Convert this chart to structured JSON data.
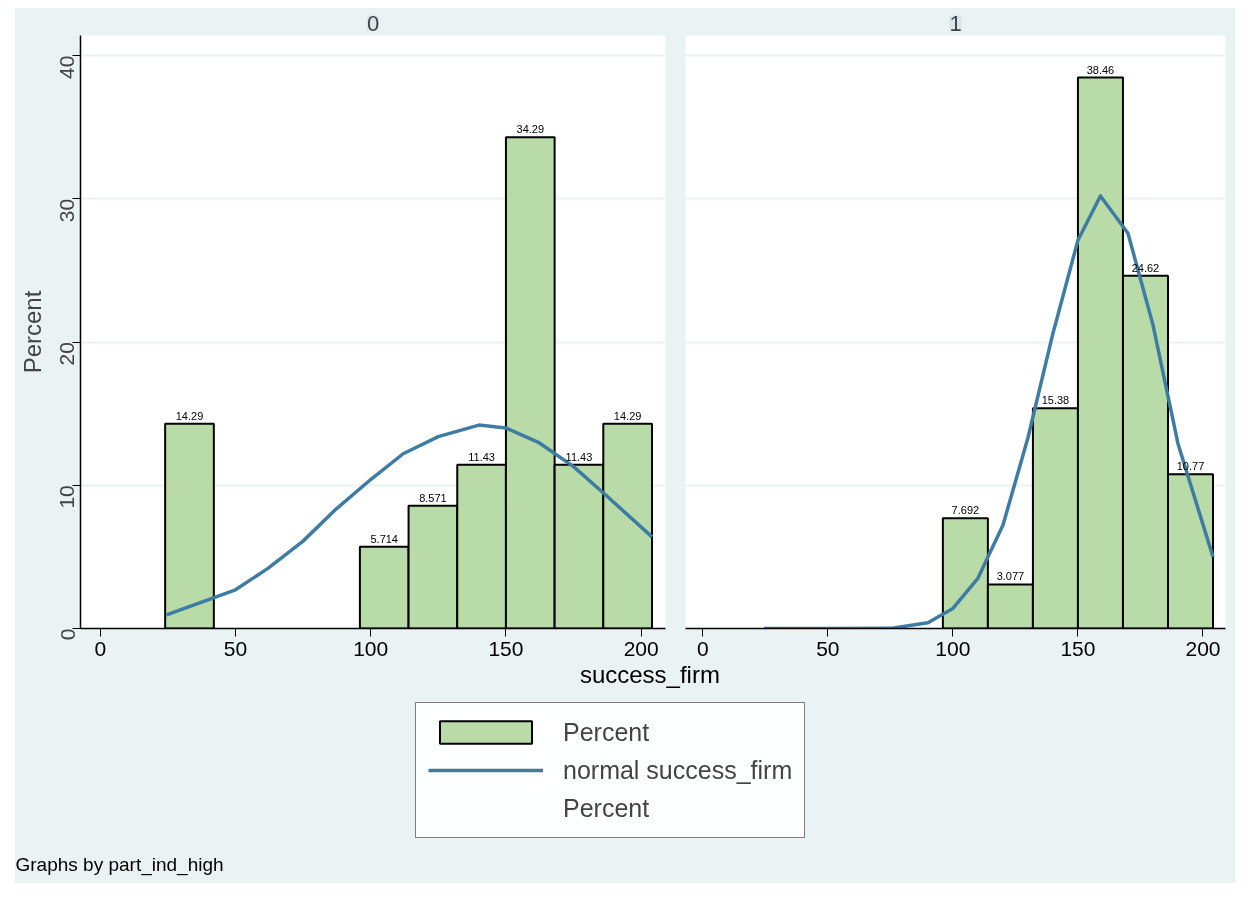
{
  "chart_data": [
    {
      "type": "histogram",
      "title": "0",
      "xlabel": "success_firm",
      "ylabel": "Percent",
      "xlim": [
        -7.3,
        209
      ],
      "ylim": [
        0,
        41.4
      ],
      "xticks": [
        0,
        50,
        100,
        150,
        200
      ],
      "yticks": [
        0,
        10,
        20,
        30,
        40
      ],
      "grid": "y",
      "legend": "bottom",
      "bins": [
        24,
        42,
        60,
        78,
        96,
        114,
        132,
        150,
        168,
        186,
        204
      ],
      "annotations": [
        "Percent",
        "Graphs by part_ind_high"
      ],
      "series": [
        {
          "name": "Percent",
          "color": "#b8dba7",
          "values": [
            14.29,
            0,
            0,
            0,
            5.714,
            8.571,
            11.43,
            34.29,
            11.43,
            14.29
          ],
          "value_labels": [
            "14.29",
            null,
            null,
            null,
            "5.714",
            "8.571",
            "11.43",
            "34.29",
            "11.43",
            "14.29"
          ]
        },
        {
          "type": "line",
          "name": "normal success_firm",
          "color": "#3f7ca4",
          "x": [
            24.5,
            37,
            50,
            62,
            75,
            87,
            100,
            112,
            125,
            140,
            150,
            162,
            175,
            187,
            204
          ],
          "values": [
            0.95,
            1.8,
            2.7,
            4.2,
            6.1,
            8.3,
            10.4,
            12.2,
            13.4,
            14.2,
            14.0,
            13.0,
            11.3,
            9.3,
            6.4
          ]
        }
      ]
    },
    {
      "type": "histogram",
      "title": "1",
      "xlim": [
        -6.9,
        209
      ],
      "ylim": [
        0,
        41.4
      ],
      "xticks": [
        0,
        50,
        100,
        150,
        200
      ],
      "yticks": [
        0,
        10,
        20,
        30,
        40
      ],
      "grid": "y",
      "tick_labels": "x",
      "bins": [
        24,
        42,
        60,
        78,
        96,
        114,
        132,
        150,
        168,
        186,
        204
      ],
      "series": [
        {
          "color": "#b8dba7",
          "values": [
            0,
            0,
            0,
            0,
            7.692,
            3.077,
            15.38,
            38.46,
            24.62,
            10.77
          ],
          "value_labels": [
            null,
            null,
            null,
            null,
            "7.692",
            "3.077",
            "15.38",
            "38.46",
            "24.62",
            "10.77"
          ]
        },
        {
          "type": "line",
          "color": "#3f7ca4",
          "x": [
            24.5,
            50,
            75,
            90,
            100,
            110,
            120,
            130,
            140,
            150,
            159,
            170,
            180,
            190,
            204
          ],
          "values": [
            0,
            0,
            0.01,
            0.4,
            1.4,
            3.5,
            7.2,
            13.3,
            20.6,
            27.1,
            30.2,
            27.6,
            21.2,
            12.9,
            5.0
          ]
        }
      ]
    }
  ]
}
